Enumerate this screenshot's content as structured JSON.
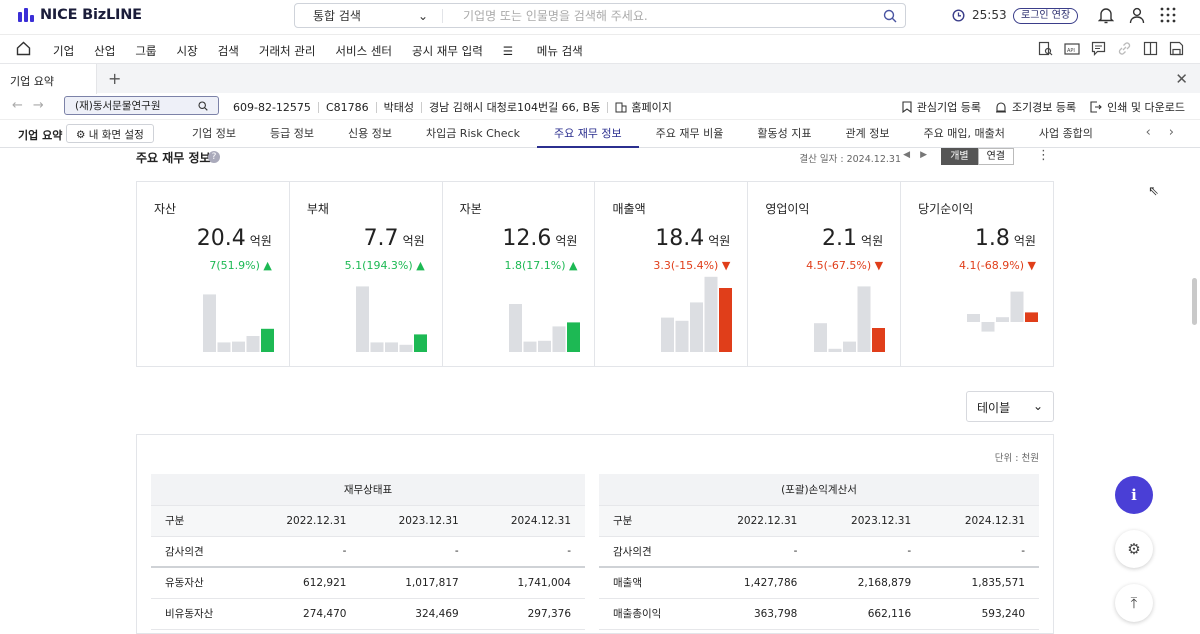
{
  "header": {
    "logo_text": "NICE BizLINE",
    "search_scope": "통합 검색",
    "search_placeholder": "기업명 또는 인물명을 검색해 주세요.",
    "timer": "25:53",
    "login_extend": "로그인 연장"
  },
  "menu": [
    "기업",
    "산업",
    "그룹",
    "시장",
    "검색",
    "거래처 관리",
    "서비스 센터",
    "공시 재무 입력",
    "메뉴 검색"
  ],
  "tab": {
    "label": "기업 요약"
  },
  "company": {
    "name": "(재)동서문물연구원",
    "reg_no": "609-82-12575",
    "code": "C81786",
    "ceo": "박태성",
    "address": "경남 김해시 대청로104번길 66, B동",
    "homepage": "홈페이지"
  },
  "info_actions": [
    "관심기업 등록",
    "조기경보 등록",
    "인쇄 및 다운로드"
  ],
  "subnav": {
    "title": "기업 요약",
    "settings": "내 화면 설정",
    "tabs": [
      "기업 정보",
      "등급 정보",
      "신용 정보",
      "차입금 Risk Check",
      "주요 재무 정보",
      "주요 재무 비율",
      "활동성 지표",
      "관계 정보",
      "주요 매입, 매출처",
      "사업 종합의"
    ],
    "active": 4
  },
  "section": {
    "title": "주요 재무 정보",
    "q": "?",
    "date_label": "결산 일자 : 2024.12.31",
    "seg": [
      "개별",
      "연결"
    ],
    "seg_active": 0
  },
  "colors": {
    "up": "#1db954",
    "down": "#e03e1a",
    "bar": "#dcdee2"
  },
  "cards": [
    {
      "label": "자산",
      "value": "20.4",
      "unit": "억원",
      "change": "7(51.9%)",
      "dir": "up",
      "bars": [
        0.72,
        0.12,
        0.13,
        0.2,
        0.29
      ]
    },
    {
      "label": "부채",
      "value": "7.7",
      "unit": "억원",
      "change": "5.1(194.3%)",
      "dir": "up",
      "bars": [
        0.82,
        0.12,
        0.12,
        0.09,
        0.22
      ]
    },
    {
      "label": "자본",
      "value": "12.6",
      "unit": "억원",
      "change": "1.8(17.1%)",
      "dir": "up",
      "bars": [
        0.6,
        0.13,
        0.14,
        0.32,
        0.37
      ]
    },
    {
      "label": "매출액",
      "value": "18.4",
      "unit": "억원",
      "change": "3.3(-15.4%)",
      "dir": "down",
      "bars": [
        0.43,
        0.39,
        0.62,
        0.94,
        0.8
      ]
    },
    {
      "label": "영업이익",
      "value": "2.1",
      "unit": "억원",
      "change": "4.5(-67.5%)",
      "dir": "down",
      "bars": [
        0.36,
        0.04,
        0.13,
        0.82,
        0.3
      ]
    },
    {
      "label": "당기순이익",
      "value": "1.8",
      "unit": "억원",
      "change": "4.1(-68.9%)",
      "dir": "down",
      "bars": [
        0.1,
        -0.12,
        0.06,
        0.38,
        0.12
      ]
    }
  ],
  "table_select": "테이블",
  "unit_label": "단위 : 천원",
  "balance": {
    "caption": "재무상태표",
    "header": [
      "구분",
      "2022.12.31",
      "2023.12.31",
      "2024.12.31"
    ],
    "rows": [
      [
        "감사의견",
        "-",
        "-",
        "-"
      ],
      [
        "유동자산",
        "612,921",
        "1,017,817",
        "1,741,004"
      ],
      [
        "비유동자산",
        "274,470",
        "324,469",
        "297,376"
      ]
    ]
  },
  "income": {
    "caption": "(포괄)손익계산서",
    "header": [
      "구분",
      "2022.12.31",
      "2023.12.31",
      "2024.12.31"
    ],
    "rows": [
      [
        "감사의견",
        "-",
        "-",
        "-"
      ],
      [
        "매출액",
        "1,427,786",
        "2,168,879",
        "1,835,571"
      ],
      [
        "매출총이익",
        "363,798",
        "662,116",
        "593,240"
      ]
    ]
  }
}
